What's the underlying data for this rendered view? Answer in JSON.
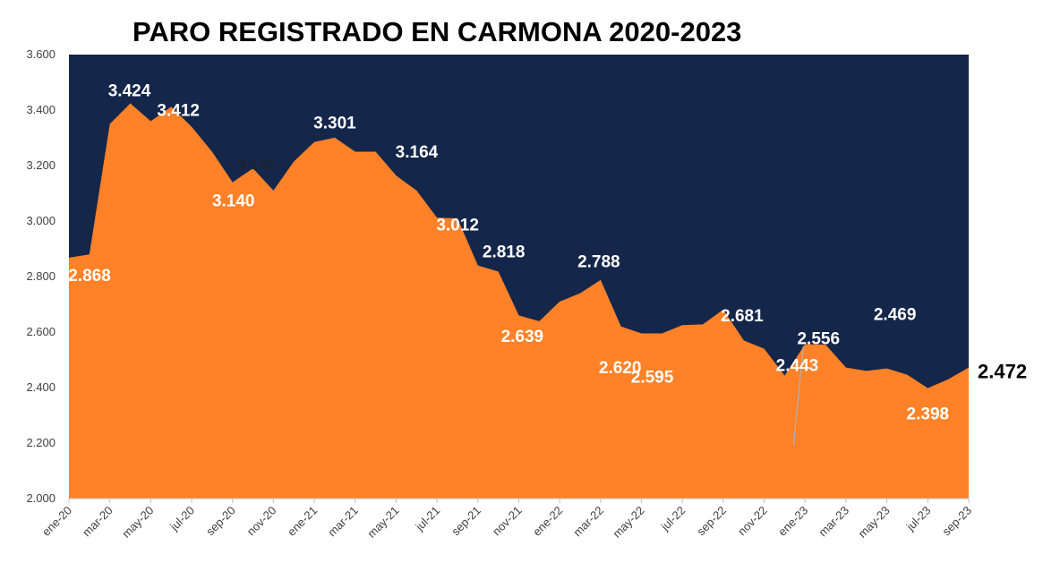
{
  "chart_data": {
    "type": "area",
    "title": "PARO REGISTRADO EN CARMONA 2020-2023",
    "xlabel": "",
    "ylabel": "",
    "ylim": [
      2000,
      3600
    ],
    "yticks": [
      2000,
      2200,
      2400,
      2600,
      2800,
      3000,
      3200,
      3400,
      3600
    ],
    "ytick_labels": [
      "2.000",
      "2.200",
      "2.400",
      "2.600",
      "2.800",
      "3.000",
      "3.200",
      "3.400",
      "3.600"
    ],
    "categories": [
      "ene-20",
      "feb-20",
      "mar-20",
      "abr-20",
      "may-20",
      "jun-20",
      "jul-20",
      "ago-20",
      "sep-20",
      "oct-20",
      "nov-20",
      "dic-20",
      "ene-21",
      "feb-21",
      "mar-21",
      "abr-21",
      "may-21",
      "jun-21",
      "jul-21",
      "ago-21",
      "sep-21",
      "oct-21",
      "nov-21",
      "dic-21",
      "ene-22",
      "feb-22",
      "mar-22",
      "abr-22",
      "may-22",
      "jun-22",
      "jul-22",
      "ago-22",
      "sep-22",
      "oct-22",
      "nov-22",
      "dic-22",
      "ene-23",
      "feb-23",
      "mar-23",
      "abr-23",
      "may-23",
      "jun-23",
      "jul-23",
      "ago-23",
      "sep-23"
    ],
    "xtick_labels": [
      "ene-20",
      "mar-20",
      "may-20",
      "jul-20",
      "sep-20",
      "nov-20",
      "ene-21",
      "mar-21",
      "may-21",
      "jul-21",
      "sep-21",
      "nov-21",
      "ene-22",
      "mar-22",
      "may-22",
      "jul-22",
      "sep-22",
      "nov-22",
      "ene-23",
      "mar-23",
      "may-23",
      "jul-23",
      "sep-23"
    ],
    "values": [
      2868,
      2880,
      3350,
      3424,
      3360,
      3412,
      3340,
      3250,
      3140,
      3190,
      3110,
      3215,
      3285,
      3301,
      3250,
      3250,
      3164,
      3110,
      3012,
      3010,
      2840,
      2818,
      2660,
      2639,
      2710,
      2740,
      2788,
      2620,
      2595,
      2595,
      2625,
      2628,
      2681,
      2570,
      2540,
      2443,
      2556,
      2555,
      2472,
      2460,
      2469,
      2446,
      2398,
      2430,
      2472
    ],
    "data_labels": [
      {
        "index": 0,
        "text": "2.868",
        "style": "white"
      },
      {
        "index": 3,
        "text": "3.424",
        "style": "white"
      },
      {
        "index": 5,
        "text": "3.412",
        "style": "white"
      },
      {
        "index": 8,
        "text": "3.140",
        "style": "white"
      },
      {
        "index": 9,
        "text": "3.190",
        "style": "dark"
      },
      {
        "index": 13,
        "text": "3.301",
        "style": "white"
      },
      {
        "index": 16,
        "text": "3.164",
        "style": "white"
      },
      {
        "index": 18,
        "text": "3.012",
        "style": "white"
      },
      {
        "index": 21,
        "text": "2.818",
        "style": "white"
      },
      {
        "index": 23,
        "text": "2.639",
        "style": "white"
      },
      {
        "index": 26,
        "text": "2.788",
        "style": "white"
      },
      {
        "index": 27,
        "text": "2.620",
        "style": "white"
      },
      {
        "index": 28,
        "text": "2.595",
        "style": "white"
      },
      {
        "index": 32,
        "text": "2.681",
        "style": "white"
      },
      {
        "index": 35,
        "text": "2.443",
        "style": "white"
      },
      {
        "index": 36,
        "text": "2.556",
        "style": "white"
      },
      {
        "index": 40,
        "text": "2.469",
        "style": "white"
      },
      {
        "index": 42,
        "text": "2.398",
        "style": "white"
      },
      {
        "index": 44,
        "text": "2.472",
        "style": "black"
      }
    ],
    "colors": {
      "area": "#FF8228",
      "plot_background": "#14264A",
      "axis_text": "#404040"
    },
    "grid": false,
    "legend": "none"
  }
}
